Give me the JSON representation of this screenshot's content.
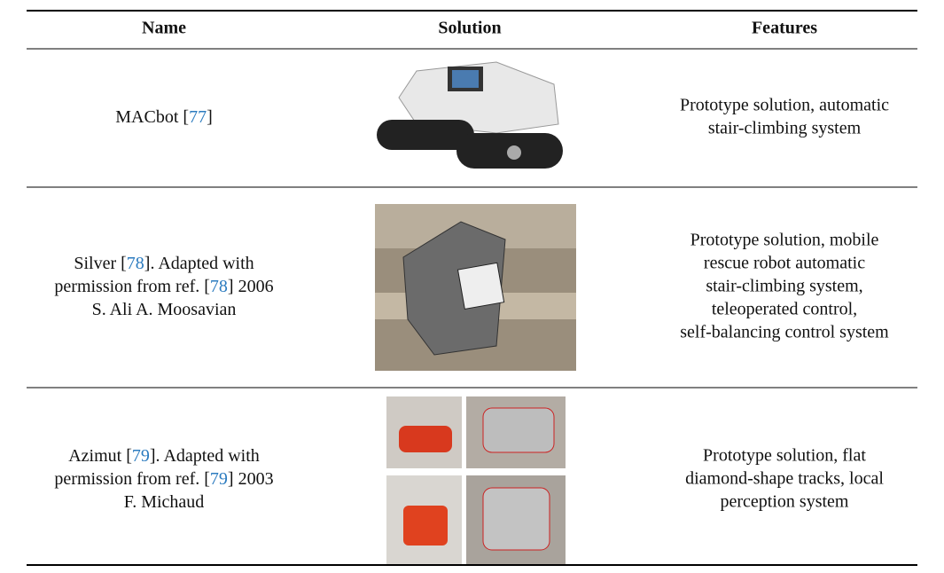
{
  "table": {
    "headers": [
      "Name",
      "Solution",
      "Features"
    ],
    "rows": [
      {
        "name": [
          [
            {
              "text": "MACbot ["
            },
            {
              "text": "77",
              "link": true
            },
            {
              "text": "]"
            }
          ]
        ],
        "features": [
          "Prototype solution, automatic",
          "stair-climbing system"
        ]
      },
      {
        "name": [
          [
            {
              "text": "Silver ["
            },
            {
              "text": "78",
              "link": true
            },
            {
              "text": "]. Adapted with"
            }
          ],
          [
            {
              "text": "permission from ref. ["
            },
            {
              "text": "78",
              "link": true
            },
            {
              "text": "] 2006"
            }
          ],
          [
            {
              "text": "S. Ali A. Moosavian"
            }
          ]
        ],
        "features": [
          "Prototype solution, mobile",
          "rescue robot automatic",
          "stair-climbing system,",
          "teleoperated control,",
          "self-balancing control system"
        ]
      },
      {
        "name": [
          [
            {
              "text": "Azimut ["
            },
            {
              "text": "79",
              "link": true
            },
            {
              "text": "]. Adapted with"
            }
          ],
          [
            {
              "text": "permission from ref. ["
            },
            {
              "text": "79",
              "link": true
            },
            {
              "text": "] 2003"
            }
          ],
          [
            {
              "text": "F. Michaud"
            }
          ]
        ],
        "features": [
          "Prototype solution, flat",
          "diamond-shape tracks, local",
          "perception system"
        ]
      }
    ]
  }
}
